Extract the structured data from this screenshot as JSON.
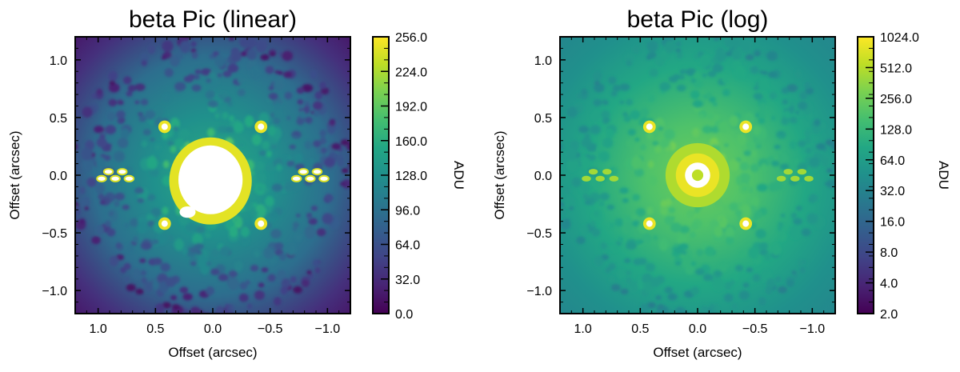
{
  "chart_data": [
    {
      "type": "heatmap",
      "title": "beta Pic (linear)",
      "xlabel": "Offset (arcsec)",
      "ylabel": "Offset (arcsec)",
      "xlim": [
        1.2,
        -1.2
      ],
      "ylim": [
        -1.2,
        1.2
      ],
      "x_ticks": [
        1.0,
        0.5,
        0.0,
        -0.5,
        -1.0
      ],
      "x_tick_labels": [
        "1.0",
        "0.5",
        "0.0",
        "−0.5",
        "−1.0"
      ],
      "y_ticks": [
        1.0,
        0.5,
        0.0,
        -0.5,
        -1.0
      ],
      "y_tick_labels": [
        "1.0",
        "0.5",
        "0.0",
        "−0.5",
        "−1.0"
      ],
      "colorbar": {
        "label": "ADU",
        "scale": "linear",
        "range": [
          0.0,
          256.0
        ],
        "tick_labels": [
          "256.0",
          "224.0",
          "192.0",
          "160.0",
          "128.0",
          "96.0",
          "64.0",
          "32.0",
          "0.0"
        ]
      },
      "colormap": "viridis",
      "saturated_color": "#ffffff",
      "features": {
        "central_blob_radius_arcsec": 0.28,
        "satellite_spots": [
          {
            "x": 0.42,
            "y": 0.42
          },
          {
            "x": -0.42,
            "y": 0.42
          },
          {
            "x": 0.42,
            "y": -0.42
          },
          {
            "x": -0.42,
            "y": -0.42
          }
        ]
      }
    },
    {
      "type": "heatmap",
      "title": "beta Pic (log)",
      "xlabel": "Offset (arcsec)",
      "ylabel": "Offset (arcsec)",
      "xlim": [
        1.2,
        -1.2
      ],
      "ylim": [
        -1.2,
        1.2
      ],
      "x_ticks": [
        1.0,
        0.5,
        0.0,
        -0.5,
        -1.0
      ],
      "x_tick_labels": [
        "1.0",
        "0.5",
        "0.0",
        "−0.5",
        "−1.0"
      ],
      "y_ticks": [
        1.0,
        0.5,
        0.0,
        -0.5,
        -1.0
      ],
      "y_tick_labels": [
        "1.0",
        "0.5",
        "0.0",
        "−0.5",
        "−1.0"
      ],
      "colorbar": {
        "label": "ADU",
        "scale": "log",
        "range": [
          2.0,
          1024.0
        ],
        "tick_labels": [
          "1024.0",
          "512.0",
          "256.0",
          "128.0",
          "64.0",
          "32.0",
          "16.0",
          "8.0",
          "4.0",
          "2.0"
        ]
      },
      "colormap": "viridis",
      "saturated_color": "#ffffff",
      "features": {
        "central_ring_radius_arcsec": 0.11,
        "satellite_spots": [
          {
            "x": 0.42,
            "y": 0.42
          },
          {
            "x": -0.42,
            "y": 0.42
          },
          {
            "x": 0.42,
            "y": -0.42
          },
          {
            "x": -0.42,
            "y": -0.42
          }
        ]
      }
    }
  ]
}
